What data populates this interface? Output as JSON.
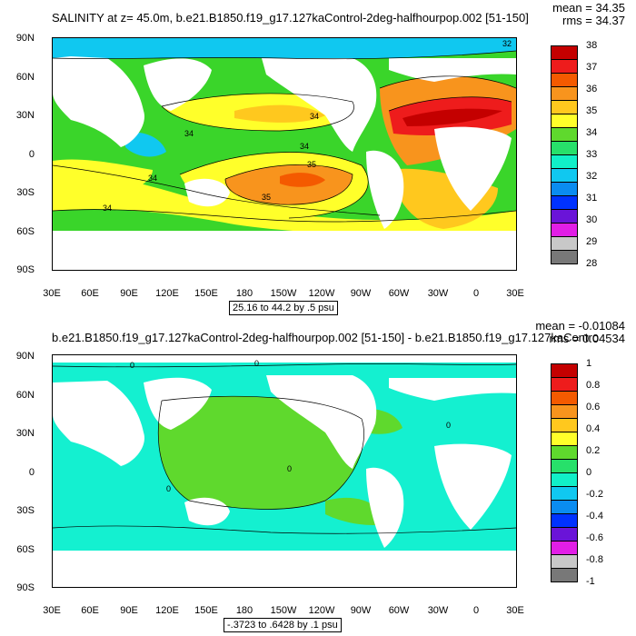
{
  "top_panel": {
    "title": "SALINITY at z=  45.0m, b.e21.B1850.f19_g17.127kaControl-2deg-halfhourpop.002 [51-150]",
    "mean_text": "mean = 34.35",
    "rms_text": "rms = 34.37",
    "contour_info": "25.16 to 44.2 by .5 psu",
    "contour_labels": [
      "32",
      "34",
      "34",
      "34",
      "34",
      "35",
      "35",
      "34"
    ],
    "legend": {
      "labels": [
        "38",
        "37",
        "36",
        "35",
        "34",
        "33",
        "32",
        "31",
        "30",
        "29",
        "28"
      ],
      "colors": [
        "#c40000",
        "#ee1c1c",
        "#f45a00",
        "#f8941d",
        "#ffc81e",
        "#ffff2a",
        "#5fd92d",
        "#27e06a",
        "#11f0c8",
        "#10c8f0",
        "#0a8cf0",
        "#0032ff",
        "#6a14d8",
        "#e11ee6",
        "#c8c8c8",
        "#787878"
      ]
    }
  },
  "bottom_panel": {
    "title": "b.e21.B1850.f19_g17.127kaControl-2deg-halfhourpop.002 [51-150] - b.e21.B1850.f19_g17.127kaContro",
    "mean_text": "mean = -0.01084",
    "rms_text": "rms = 0.04534",
    "contour_info": "-.3723 to .6428 by .1 psu",
    "contour_labels": [
      "0",
      "0",
      "0",
      "0",
      "0"
    ],
    "legend": {
      "labels": [
        "1",
        "0.8",
        "0.6",
        "0.4",
        "0.2",
        "0",
        "-0.2",
        "-0.4",
        "-0.6",
        "-0.8",
        "-1"
      ],
      "colors": [
        "#c40000",
        "#ee1c1c",
        "#f45a00",
        "#f8941d",
        "#ffc81e",
        "#ffff2a",
        "#5fd92d",
        "#27e06a",
        "#11f0c8",
        "#10c8f0",
        "#0a8cf0",
        "#0032ff",
        "#6a14d8",
        "#e11ee6",
        "#c8c8c8",
        "#787878"
      ]
    }
  },
  "axes": {
    "y_labels": [
      "90N",
      "60N",
      "30N",
      "0",
      "30S",
      "60S",
      "90S"
    ],
    "x_labels": [
      "30E",
      "60E",
      "90E",
      "120E",
      "150E",
      "180",
      "150W",
      "120W",
      "90W",
      "60W",
      "30W",
      "0",
      "30E"
    ]
  },
  "colors": {
    "land": "#ffffff",
    "top_base": "#3ad52a",
    "bottom_ocean": "#14f0d0",
    "bottom_green": "#5fd92d"
  }
}
